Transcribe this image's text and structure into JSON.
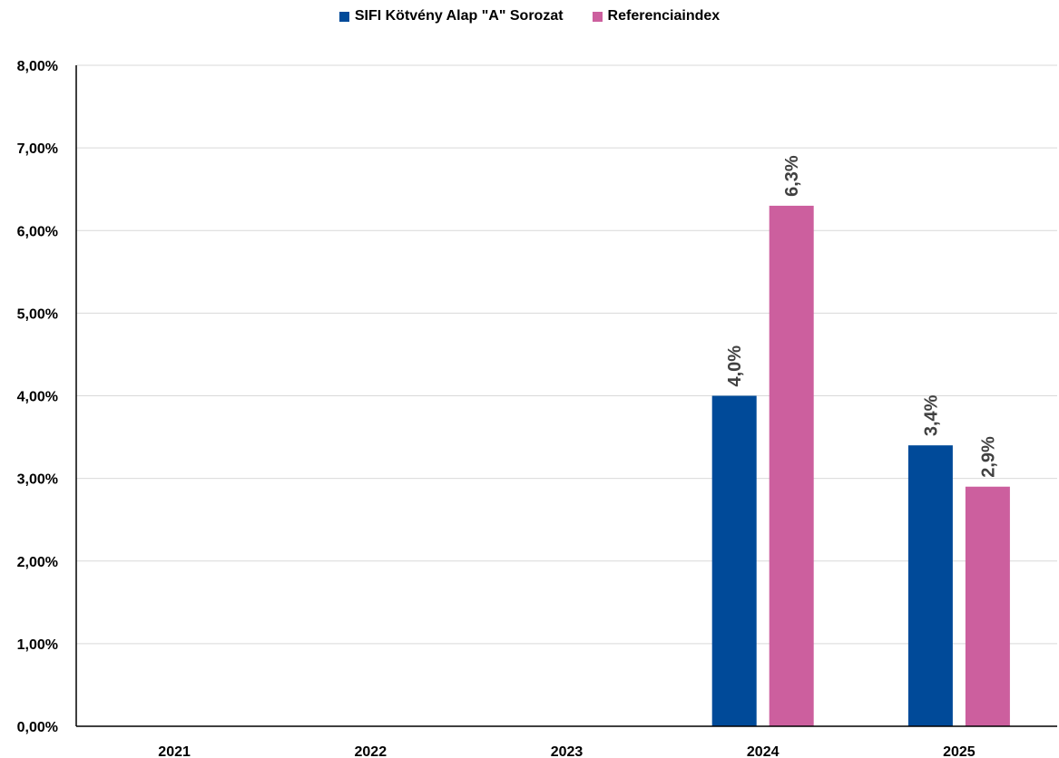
{
  "chart_data": {
    "type": "bar",
    "categories": [
      "2021",
      "2022",
      "2023",
      "2024",
      "2025"
    ],
    "series": [
      {
        "name": "SIFI Kötvény Alap \"A\" Sorozat",
        "color": "#004a99",
        "values": [
          null,
          null,
          null,
          4.0,
          3.4
        ],
        "labels": [
          "",
          "",
          "",
          "4,0%",
          "3,4%"
        ]
      },
      {
        "name": "Referenciaindex",
        "color": "#cc5f9e",
        "values": [
          null,
          null,
          null,
          6.3,
          2.9
        ],
        "labels": [
          "",
          "",
          "",
          "6,3%",
          "2,9%"
        ]
      }
    ],
    "ylim": [
      0,
      8
    ],
    "yticks": [
      0,
      1,
      2,
      3,
      4,
      5,
      6,
      7,
      8
    ],
    "ytick_labels": [
      "0,00%",
      "1,00%",
      "2,00%",
      "3,00%",
      "4,00%",
      "5,00%",
      "6,00%",
      "7,00%",
      "8,00%"
    ],
    "title": "",
    "xlabel": "",
    "ylabel": "",
    "grid": true,
    "legend_position": "top-center",
    "data_label_orientation": "vertical"
  }
}
